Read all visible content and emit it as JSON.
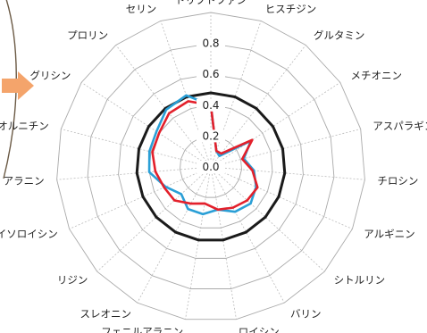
{
  "chart_data": {
    "type": "radar",
    "categories": [
      "トリプトファン",
      "ヒスチジン",
      "グルタミン",
      "メチオニン",
      "アスパラギン",
      "チロシン",
      "アルギニン",
      "シトルリン",
      "バリン",
      "ロイシン",
      "フェニルアラニン",
      "スレオニン",
      "リジン",
      "イソロイシン",
      "アラニン",
      "オルニチン",
      "グリシン",
      "プロリン",
      "セリン"
    ],
    "r_ticks": [
      0.0,
      0.2,
      0.4,
      0.6,
      0.8
    ],
    "r_tick_labels": [
      "0.0",
      "0.2",
      "0.4",
      "0.6",
      "0.8"
    ],
    "rlim": [
      0.0,
      1.0
    ],
    "grid": true,
    "series": [
      {
        "color": "#1a1a1a",
        "values": [
          0.48,
          0.48,
          0.48,
          0.48,
          0.48,
          0.48,
          0.48,
          0.48,
          0.48,
          0.48,
          0.48,
          0.48,
          0.48,
          0.48,
          0.48,
          0.48,
          0.48,
          0.48,
          0.48
        ]
      },
      {
        "color": "#2a9fd6",
        "values": [
          0.4,
          0.11,
          0.09,
          0.31,
          0.22,
          0.28,
          0.32,
          0.35,
          0.33,
          0.28,
          0.31,
          0.31,
          0.26,
          0.32,
          0.4,
          0.41,
          0.42,
          0.47,
          0.49
        ]
      },
      {
        "color": "#e3202b",
        "values": [
          0.4,
          0.11,
          0.11,
          0.32,
          0.21,
          0.27,
          0.33,
          0.32,
          0.3,
          0.28,
          0.24,
          0.27,
          0.32,
          0.33,
          0.36,
          0.39,
          0.4,
          0.44,
          0.45
        ]
      }
    ]
  },
  "decorations": {
    "arrow_color": "#f4a46b",
    "left_arc_color": "#6b5a45"
  }
}
